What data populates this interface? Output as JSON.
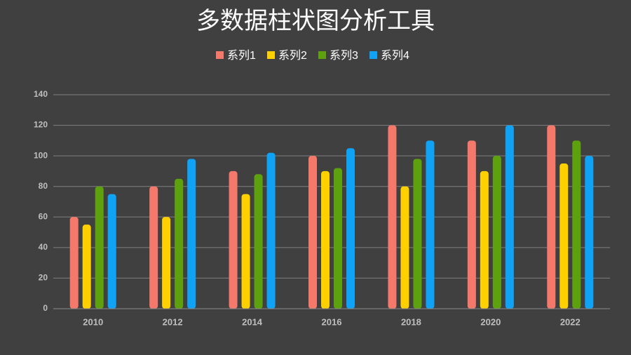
{
  "chart_data": {
    "type": "bar",
    "title": "多数据柱状图分析工具",
    "categories": [
      "2010",
      "2012",
      "2014",
      "2016",
      "2018",
      "2020",
      "2022"
    ],
    "series": [
      {
        "name": "系列1",
        "color": "#f4796b",
        "values": [
          60,
          80,
          90,
          100,
          120,
          110,
          120
        ]
      },
      {
        "name": "系列2",
        "color": "#ffd000",
        "values": [
          55,
          60,
          75,
          90,
          80,
          90,
          95
        ]
      },
      {
        "name": "系列3",
        "color": "#5ea10e",
        "values": [
          80,
          85,
          88,
          92,
          98,
          100,
          110
        ]
      },
      {
        "name": "系列4",
        "color": "#10a2f5",
        "values": [
          75,
          98,
          102,
          105,
          110,
          120,
          100
        ]
      }
    ],
    "ylim": [
      0,
      140
    ],
    "yticks": [
      0,
      20,
      40,
      60,
      80,
      100,
      120,
      140
    ],
    "grid": true,
    "legend": "top"
  }
}
